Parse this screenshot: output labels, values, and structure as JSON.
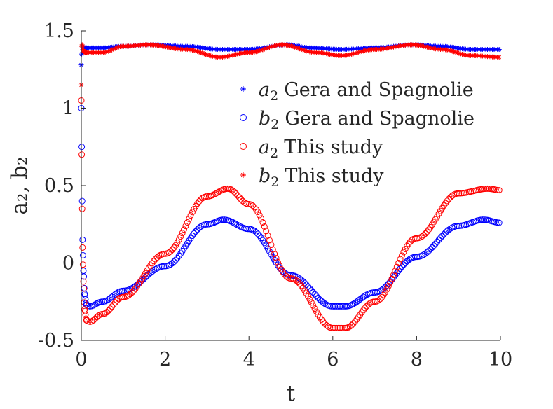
{
  "chart_data": {
    "type": "scatter",
    "title": "",
    "xlabel": "t",
    "ylabel": "a₂, b₂",
    "xlim": [
      0,
      10
    ],
    "ylim": [
      -0.5,
      1.5
    ],
    "xticks": [
      "0",
      "2",
      "4",
      "6",
      "8",
      "10"
    ],
    "yticks": [
      "-0.5",
      "0",
      "0.5",
      "1",
      "1.5"
    ],
    "grid": false,
    "legend_position": "top-right",
    "series": [
      {
        "name": "a2 Gera and Spagnolie",
        "label_var": "a",
        "label_sub": "2",
        "label_rest": "Gera and Spagnolie",
        "marker": "star",
        "color": "#0000ff",
        "points": [
          [
            0,
            1.28
          ],
          [
            0.01,
            1.35
          ],
          [
            0.02,
            1.39
          ],
          [
            0.05,
            1.39
          ],
          [
            0.1,
            1.39
          ],
          [
            0.5,
            1.39
          ],
          [
            1,
            1.4
          ],
          [
            1.6,
            1.41
          ],
          [
            2.5,
            1.4
          ],
          [
            3.3,
            1.38
          ],
          [
            4.0,
            1.38
          ],
          [
            4.9,
            1.41
          ],
          [
            5.5,
            1.39
          ],
          [
            6.2,
            1.38
          ],
          [
            7.0,
            1.39
          ],
          [
            7.9,
            1.41
          ],
          [
            8.6,
            1.4
          ],
          [
            9.3,
            1.38
          ],
          [
            10,
            1.38
          ]
        ]
      },
      {
        "name": "b2 Gera and Spagnolie",
        "label_var": "b",
        "label_sub": "2",
        "label_rest": "Gera and Spagnolie",
        "marker": "circle",
        "color": "#0000ff",
        "points": [
          [
            0,
            1.0
          ],
          [
            0.01,
            0.75
          ],
          [
            0.02,
            0.4
          ],
          [
            0.03,
            0.15
          ],
          [
            0.05,
            -0.05
          ],
          [
            0.08,
            -0.2
          ],
          [
            0.12,
            -0.27
          ],
          [
            0.2,
            -0.28
          ],
          [
            0.5,
            -0.25
          ],
          [
            1,
            -0.18
          ],
          [
            2,
            -0.02
          ],
          [
            3,
            0.25
          ],
          [
            3.4,
            0.28
          ],
          [
            4,
            0.22
          ],
          [
            5,
            -0.08
          ],
          [
            6,
            -0.28
          ],
          [
            6.3,
            -0.28
          ],
          [
            7,
            -0.19
          ],
          [
            8,
            0.04
          ],
          [
            9,
            0.24
          ],
          [
            9.6,
            0.28
          ],
          [
            10,
            0.26
          ]
        ]
      },
      {
        "name": "a2 This study",
        "label_var": "a",
        "label_sub": "2",
        "label_rest": "This study",
        "marker": "circle",
        "color": "#ff0000",
        "points": [
          [
            0,
            1.05
          ],
          [
            0.01,
            0.7
          ],
          [
            0.02,
            0.35
          ],
          [
            0.03,
            0.1
          ],
          [
            0.05,
            -0.12
          ],
          [
            0.08,
            -0.3
          ],
          [
            0.12,
            -0.37
          ],
          [
            0.2,
            -0.38
          ],
          [
            0.5,
            -0.33
          ],
          [
            1,
            -0.22
          ],
          [
            2,
            0.06
          ],
          [
            3,
            0.43
          ],
          [
            3.5,
            0.48
          ],
          [
            4,
            0.38
          ],
          [
            5,
            -0.1
          ],
          [
            6,
            -0.42
          ],
          [
            6.3,
            -0.42
          ],
          [
            7,
            -0.25
          ],
          [
            8,
            0.16
          ],
          [
            9,
            0.45
          ],
          [
            9.7,
            0.48
          ],
          [
            10,
            0.47
          ]
        ]
      },
      {
        "name": "b2 This study",
        "label_var": "b",
        "label_sub": "2",
        "label_rest": "This study",
        "marker": "star",
        "color": "#ff0000",
        "points": [
          [
            0,
            1.15
          ],
          [
            0.01,
            1.4
          ],
          [
            0.02,
            1.41
          ],
          [
            0.05,
            1.37
          ],
          [
            0.1,
            1.36
          ],
          [
            0.5,
            1.36
          ],
          [
            1,
            1.4
          ],
          [
            1.6,
            1.41
          ],
          [
            2.5,
            1.38
          ],
          [
            3.3,
            1.33
          ],
          [
            4.0,
            1.36
          ],
          [
            4.8,
            1.41
          ],
          [
            5.6,
            1.36
          ],
          [
            6.2,
            1.34
          ],
          [
            7.0,
            1.38
          ],
          [
            7.9,
            1.41
          ],
          [
            8.6,
            1.38
          ],
          [
            9.3,
            1.34
          ],
          [
            10,
            1.33
          ]
        ]
      }
    ]
  }
}
